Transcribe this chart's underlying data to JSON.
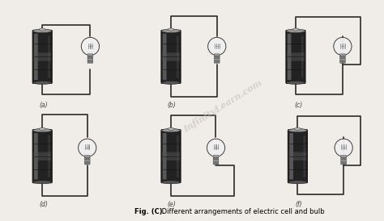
{
  "title_bold": "Fig. (C).",
  "title_rest": " Different arrangements of electric cell and bulb",
  "background_color": "#f0ede8",
  "labels": [
    "(a)",
    "(b)",
    "(c)",
    "(d)",
    "(e)",
    "(f)"
  ],
  "wire_color": "#2a2a2a",
  "wire_lw": 1.2,
  "battery_body_color": "#1c1c1c",
  "battery_stripe_colors": [
    "#5a5a5a",
    "#3a3a3a",
    "#4a4a4a"
  ],
  "battery_cap_top": "#aaaaaa",
  "battery_cap_bot": "#555555",
  "battery_nub": "#888888",
  "bulb_globe_face": "#e8e8e8",
  "bulb_globe_edge": "#333333",
  "bulb_base_color": "#888888",
  "watermark": "InfinityLearn.com",
  "watermark_color": "#c0b8b0",
  "watermark_alpha": 0.55,
  "caption_fontsize": 6.0
}
